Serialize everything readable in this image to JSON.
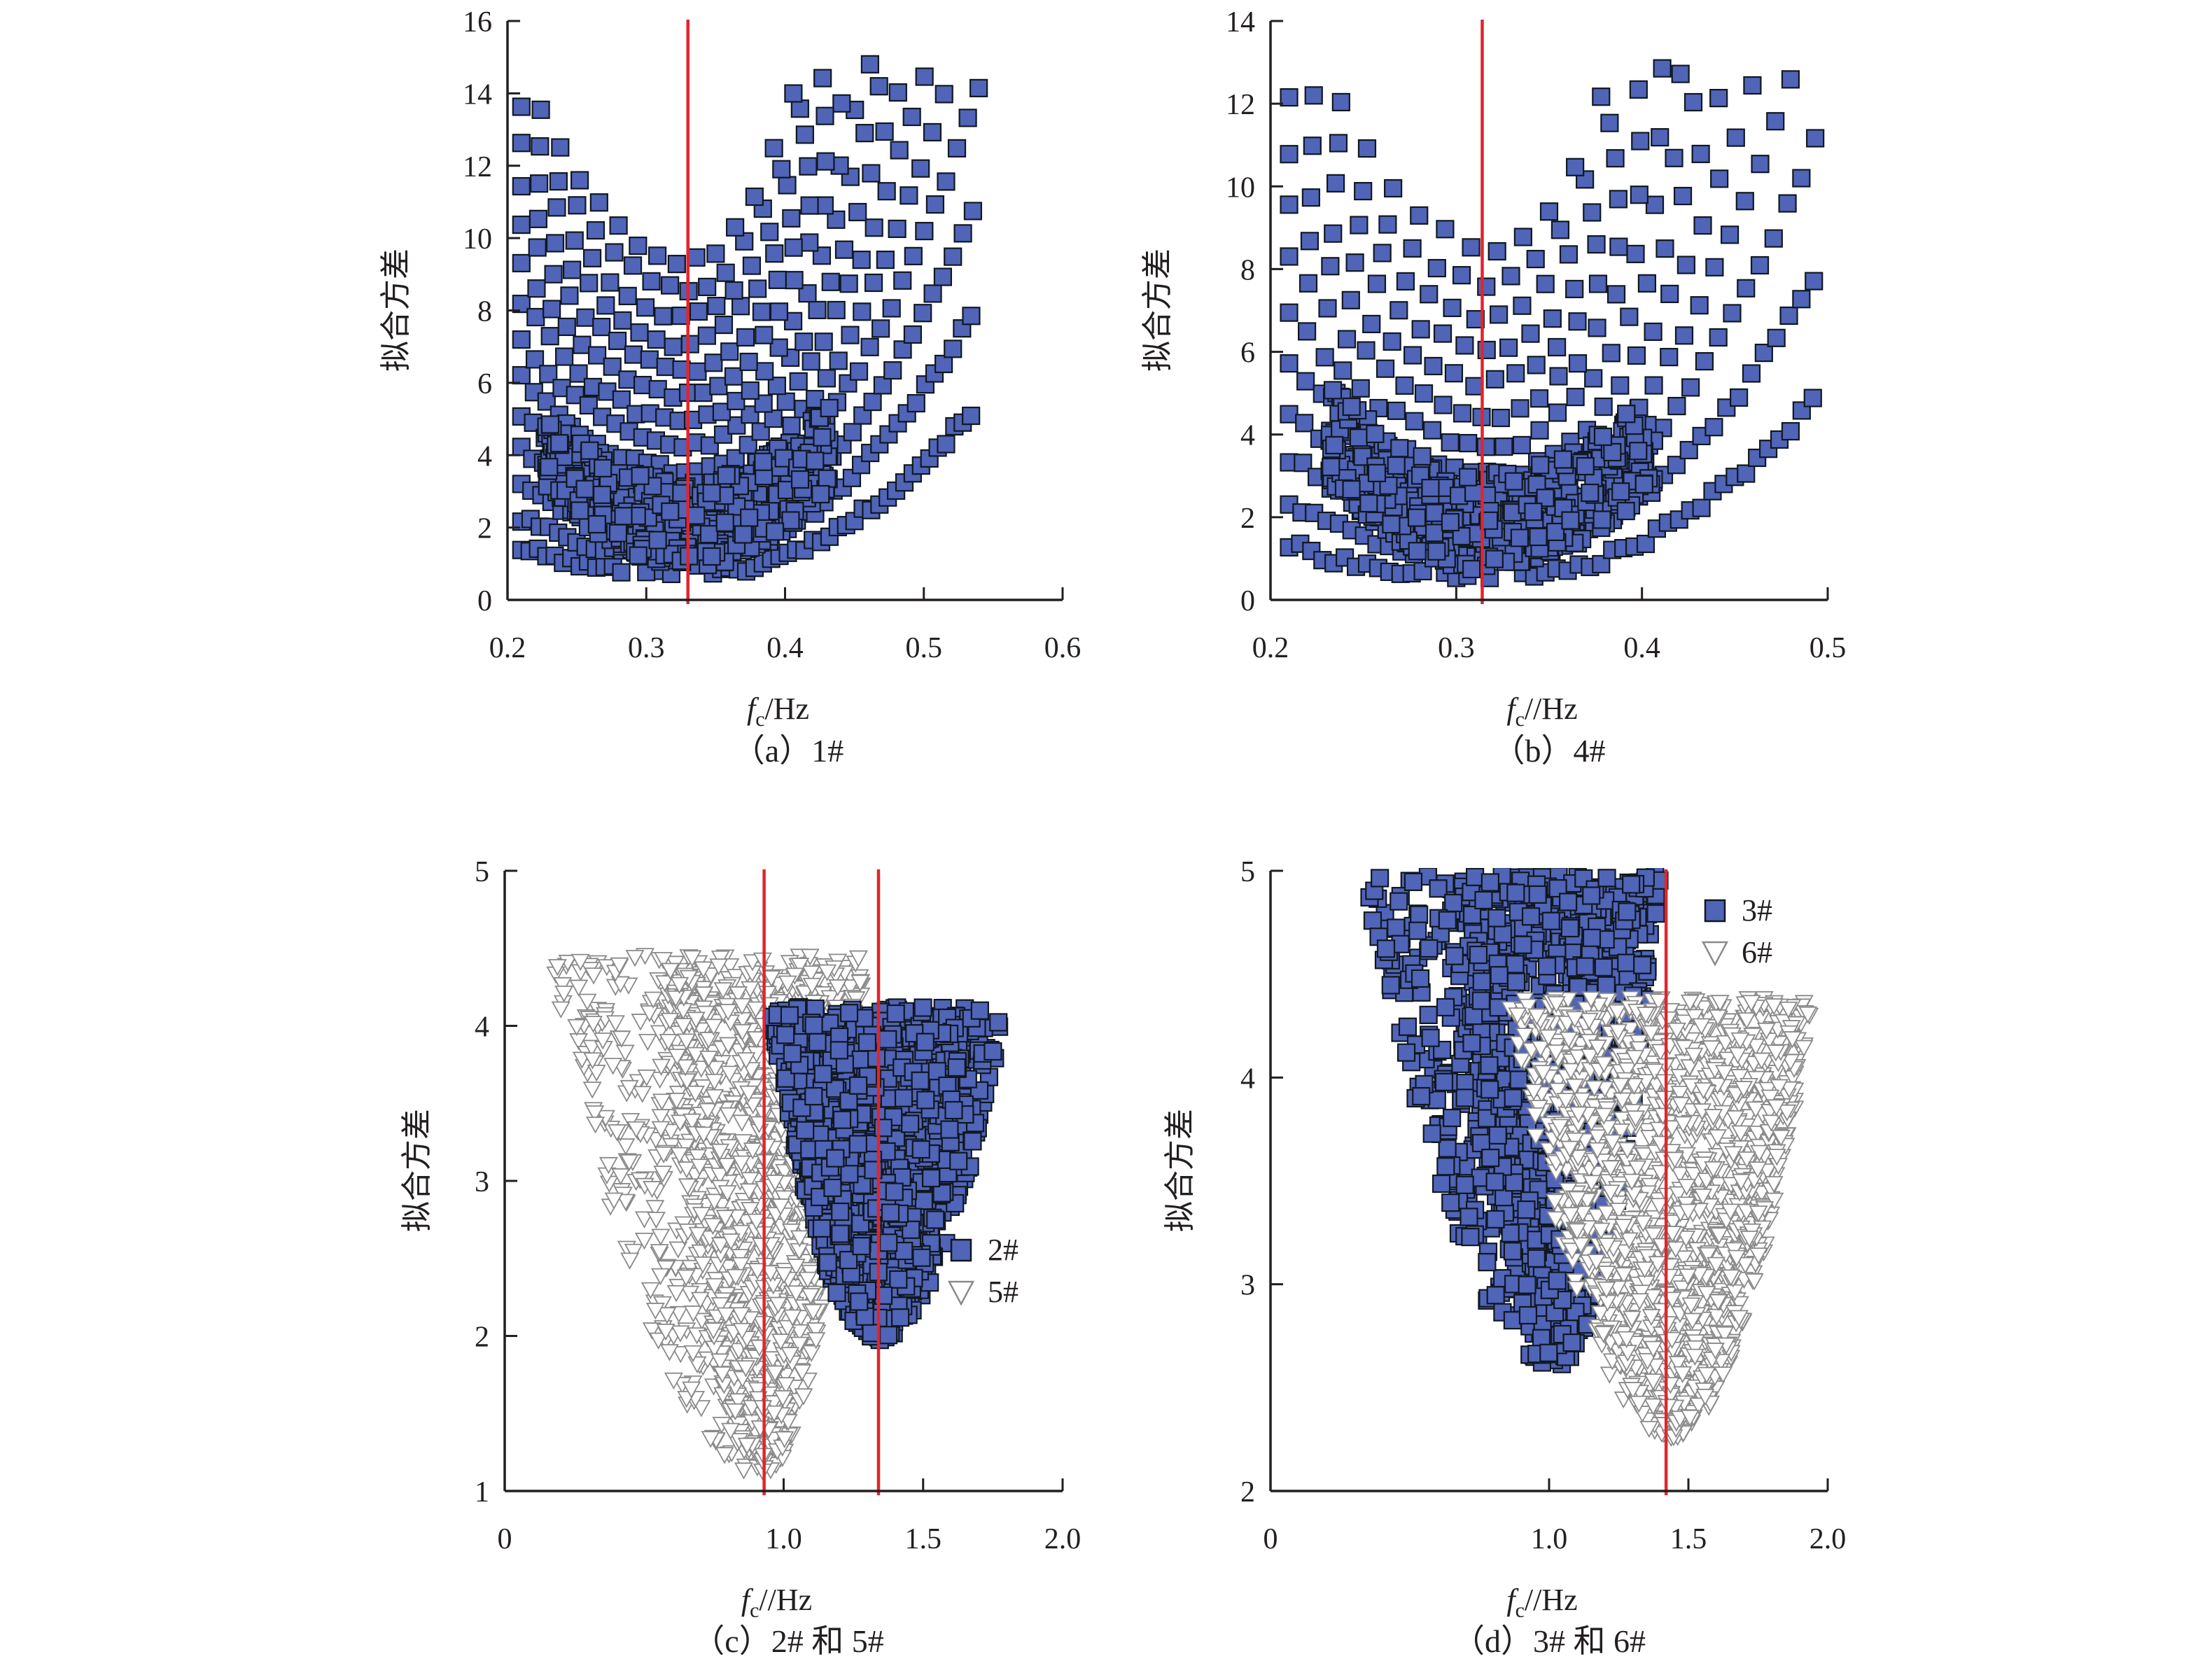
{
  "colors": {
    "square_fill": "#5064b8",
    "square_stroke": "#101820",
    "triangle_stroke": "#8a8a8a",
    "triangle_fill": "#ffffff",
    "red_line": "#e3242b",
    "axis": "#231f20"
  },
  "chart_data": [
    {
      "id": "a",
      "type": "scatter",
      "caption": "（a）1#",
      "xlabel_main": "f",
      "xlabel_sub": "c",
      "xlabel_rest": "/Hz",
      "ylabel": "拟合方差",
      "xlim": [
        0.2,
        0.6
      ],
      "ylim": [
        0,
        16
      ],
      "xticks": [
        "0.2",
        "0.3",
        "0.4",
        "0.5",
        "0.6"
      ],
      "xtick_values": [
        0.2,
        0.3,
        0.4,
        0.5,
        0.6
      ],
      "yticks": [
        "0",
        "2",
        "4",
        "6",
        "8",
        "10",
        "12",
        "14",
        "16"
      ],
      "ytick_values": [
        0,
        2,
        4,
        6,
        8,
        10,
        12,
        14,
        16
      ],
      "vlines": [
        0.33
      ],
      "series": [
        {
          "name": "1#",
          "marker": "square",
          "family": {
            "min_x": 0.33,
            "min_y": 0.7,
            "fan_rows": 14,
            "left_x": 0.21,
            "right_x": 0.54,
            "top_y": 14.6
          }
        }
      ]
    },
    {
      "id": "b",
      "type": "scatter",
      "caption": "（b）4#",
      "xlabel_main": "f",
      "xlabel_sub": "c",
      "xlabel_rest": "//Hz",
      "ylabel": "拟合方差",
      "xlim": [
        0.2,
        0.5
      ],
      "ylim": [
        0,
        14
      ],
      "xticks": [
        "0.2",
        "0.3",
        "0.4",
        "0.5"
      ],
      "xtick_values": [
        0.2,
        0.3,
        0.4,
        0.5
      ],
      "yticks": [
        "0",
        "2",
        "4",
        "6",
        "8",
        "10",
        "12",
        "14"
      ],
      "ytick_values": [
        0,
        2,
        4,
        6,
        8,
        10,
        12,
        14
      ],
      "vlines": [
        0.314
      ],
      "series": [
        {
          "name": "4#",
          "marker": "square",
          "family": {
            "min_x": 0.32,
            "min_y": 0.5,
            "fan_rows": 12,
            "left_x": 0.21,
            "right_x": 0.495,
            "top_y": 13.4
          }
        }
      ]
    },
    {
      "id": "c",
      "type": "scatter",
      "caption": "（c）2# 和 5#",
      "xlabel_main": "f",
      "xlabel_sub": "c",
      "xlabel_rest": "//Hz",
      "ylabel": "拟合方差",
      "xlim": [
        0,
        2.0
      ],
      "ylim": [
        1,
        5
      ],
      "xticks": [
        "0",
        "1.0",
        "1.5",
        "2.0"
      ],
      "xtick_values": [
        0,
        1.0,
        1.5,
        2.0
      ],
      "yticks": [
        "1",
        "2",
        "3",
        "4",
        "5"
      ],
      "ytick_values": [
        1,
        2,
        3,
        4,
        5
      ],
      "vlines": [
        0.93,
        1.34
      ],
      "legend": [
        {
          "label": "2#",
          "marker": "square"
        },
        {
          "label": "5#",
          "marker": "triangle"
        }
      ],
      "series": [
        {
          "name": "5#",
          "marker": "triangle",
          "cloud": {
            "min_x": 0.93,
            "min_y": 1.1,
            "left_x": 0.16,
            "right_x": 1.3,
            "top_y": 4.45
          }
        },
        {
          "name": "2#",
          "marker": "square",
          "cloud": {
            "min_x": 1.33,
            "min_y": 1.97,
            "left_x": 0.95,
            "right_x": 1.8,
            "top_y": 4.12
          }
        }
      ]
    },
    {
      "id": "d",
      "type": "scatter",
      "caption": "（d）3# 和 6#",
      "xlabel_main": "f",
      "xlabel_sub": "c",
      "xlabel_rest": "//Hz",
      "ylabel": "拟合方差",
      "xlim": [
        0,
        2.0
      ],
      "ylim": [
        2,
        5
      ],
      "xticks": [
        "0",
        "1.0",
        "1.5",
        "2.0"
      ],
      "xtick_values": [
        0,
        1.0,
        1.5,
        2.0
      ],
      "yticks": [
        "2",
        "3",
        "4",
        "5"
      ],
      "ytick_values": [
        2,
        3,
        4,
        5
      ],
      "vlines": [
        1.42
      ],
      "legend": [
        {
          "label": "3#",
          "marker": "square"
        },
        {
          "label": "6#",
          "marker": "triangle"
        }
      ],
      "series": [
        {
          "name": "3#",
          "marker": "square",
          "cloud": {
            "min_x": 1.04,
            "min_y": 2.6,
            "left_x": 0.32,
            "right_x": 1.4,
            "top_y": 5.0
          }
        },
        {
          "name": "6#",
          "marker": "triangle",
          "cloud": {
            "min_x": 1.44,
            "min_y": 2.25,
            "left_x": 0.85,
            "right_x": 1.95,
            "top_y": 4.38
          }
        }
      ]
    }
  ]
}
